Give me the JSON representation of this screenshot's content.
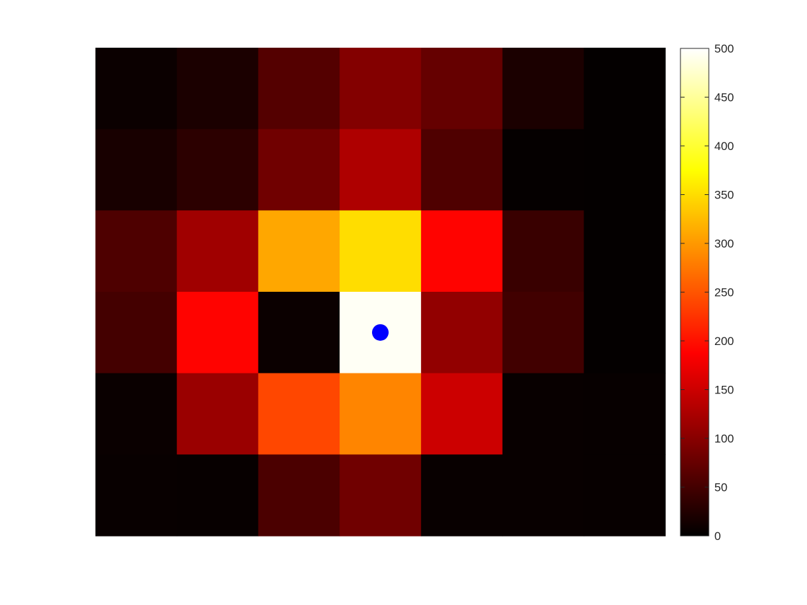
{
  "chart_data": {
    "type": "heatmap",
    "title": "",
    "xlabel": "",
    "ylabel": "",
    "colormap": "hot",
    "grid": false,
    "clim": [
      0,
      500
    ],
    "rows": 6,
    "cols": 7,
    "values": [
      [
        8,
        20,
        62,
        96,
        74,
        20,
        3
      ],
      [
        18,
        32,
        82,
        128,
        58,
        4,
        3
      ],
      [
        57,
        118,
        310,
        350,
        190,
        42,
        3
      ],
      [
        50,
        190,
        8,
        495,
        107,
        48,
        3
      ],
      [
        7,
        113,
        240,
        285,
        150,
        6,
        5
      ],
      [
        6,
        5,
        55,
        82,
        6,
        6,
        5
      ]
    ],
    "marker": {
      "row": 3,
      "col": 3,
      "color": "#0000ff"
    },
    "colorbar": {
      "location": "right",
      "ticks": [
        "0",
        "50",
        "100",
        "150",
        "200",
        "250",
        "300",
        "350",
        "400",
        "450",
        "500"
      ]
    }
  }
}
